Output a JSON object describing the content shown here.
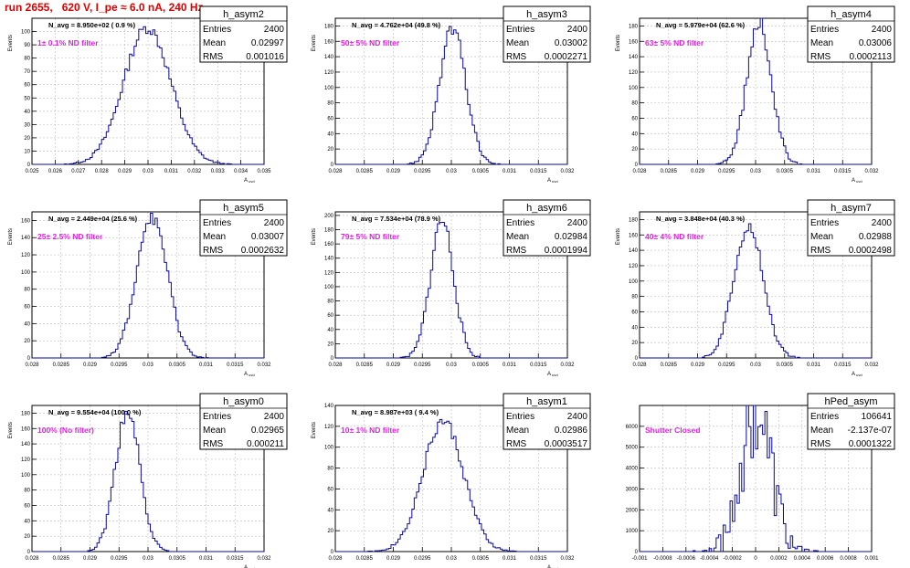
{
  "page": {
    "title": "run 2655,   620 V, I_pe ≈ 6.0 nA, 240 Hz"
  },
  "colors": {
    "title": "#e00000",
    "histogram": "#0a0a9a",
    "filter_label": "#e020e0",
    "axis": "#000000",
    "grid": "#bbbbbb"
  },
  "chart_data": [
    {
      "type": "histogram",
      "name": "h_asym2",
      "stats": {
        "Entries": "2400",
        "Mean": "0.02997",
        "RMS": "0.001016"
      },
      "navg": "N_avg = 8.950e+02 ( 0.9 %)",
      "filter_label": "1± 0.1% ND filter",
      "xlim": [
        0.025,
        0.035
      ],
      "ylim": [
        0,
        110
      ],
      "xticks": [
        "0.025",
        "0.026",
        "0.027",
        "0.028",
        "0.029",
        "0.03",
        "0.031",
        "0.032",
        "0.033",
        "0.034",
        "0.035"
      ],
      "yticks": [
        "0",
        "10",
        "20",
        "30",
        "40",
        "50",
        "60",
        "70",
        "80",
        "90",
        "100"
      ],
      "ylabel": "Events",
      "xlabel": "A_uvd",
      "mean": 0.02997,
      "sigma": 0.001016,
      "peak": 103
    },
    {
      "type": "histogram",
      "name": "h_asym3",
      "stats": {
        "Entries": "2400",
        "Mean": "0.03002",
        "RMS": "0.0002271"
      },
      "navg": "N_avg = 4.762e+04 (49.8 %)",
      "filter_label": "50± 5% ND filter",
      "xlim": [
        0.028,
        0.032
      ],
      "ylim": [
        0,
        190
      ],
      "xticks": [
        "0.028",
        "0.0285",
        "0.029",
        "0.0295",
        "0.03",
        "0.0305",
        "0.031",
        "0.0315",
        "0.032"
      ],
      "yticks": [
        "0",
        "20",
        "40",
        "60",
        "80",
        "100",
        "120",
        "140",
        "160",
        "180"
      ],
      "ylabel": "Events",
      "xlabel": "A_uvd",
      "mean": 0.03002,
      "sigma": 0.0002271,
      "peak": 175
    },
    {
      "type": "histogram",
      "name": "h_asym4",
      "stats": {
        "Entries": "2400",
        "Mean": "0.03006",
        "RMS": "0.0002113"
      },
      "navg": "N_avg = 5.979e+04 (62.6 %)",
      "filter_label": "63± 5% ND filter",
      "xlim": [
        0.028,
        0.032
      ],
      "ylim": [
        0,
        190
      ],
      "xticks": [
        "0.028",
        "0.0285",
        "0.029",
        "0.0295",
        "0.03",
        "0.0305",
        "0.031",
        "0.0315",
        "0.032"
      ],
      "yticks": [
        "0",
        "20",
        "40",
        "60",
        "80",
        "100",
        "120",
        "140",
        "160",
        "180"
      ],
      "ylabel": "Events",
      "xlabel": "A_uvd",
      "mean": 0.03006,
      "sigma": 0.0002113,
      "peak": 185
    },
    {
      "type": "histogram",
      "name": "h_asym5",
      "stats": {
        "Entries": "2400",
        "Mean": "0.03007",
        "RMS": "0.0002632"
      },
      "navg": "N_avg = 2.449e+04 (25.6 %)",
      "filter_label": "25± 2.5% ND filter",
      "xlim": [
        0.028,
        0.032
      ],
      "ylim": [
        0,
        170
      ],
      "xticks": [
        "0.028",
        "0.0285",
        "0.029",
        "0.0295",
        "0.03",
        "0.0305",
        "0.031",
        "0.0315",
        "0.032"
      ],
      "yticks": [
        "0",
        "20",
        "40",
        "60",
        "80",
        "100",
        "120",
        "140",
        "160"
      ],
      "ylabel": "Events",
      "xlabel": "A_uvd",
      "mean": 0.03007,
      "sigma": 0.0002632,
      "peak": 165
    },
    {
      "type": "histogram",
      "name": "h_asym6",
      "stats": {
        "Entries": "2400",
        "Mean": "0.02984",
        "RMS": "0.0001994"
      },
      "navg": "N_avg = 7.534e+04 (78.9 %)",
      "filter_label": "79± 5% ND filter",
      "xlim": [
        0.028,
        0.032
      ],
      "ylim": [
        0,
        205
      ],
      "xticks": [
        "0.028",
        "0.0285",
        "0.029",
        "0.0295",
        "0.03",
        "0.0305",
        "0.031",
        "0.0315",
        "0.032"
      ],
      "yticks": [
        "0",
        "20",
        "40",
        "60",
        "80",
        "100",
        "120",
        "140",
        "160",
        "180",
        "200"
      ],
      "ylabel": "Events",
      "xlabel": "A_uvd",
      "mean": 0.02984,
      "sigma": 0.0001994,
      "peak": 193
    },
    {
      "type": "histogram",
      "name": "h_asym7",
      "stats": {
        "Entries": "2400",
        "Mean": "0.02988",
        "RMS": "0.0002498"
      },
      "navg": "N_avg = 3.848e+04 (40.3 %)",
      "filter_label": "40± 4% ND filter",
      "xlim": [
        0.028,
        0.032
      ],
      "ylim": [
        0,
        190
      ],
      "xticks": [
        "0.028",
        "0.0285",
        "0.029",
        "0.0295",
        "0.03",
        "0.0305",
        "0.031",
        "0.0315",
        "0.032"
      ],
      "yticks": [
        "0",
        "20",
        "40",
        "60",
        "80",
        "100",
        "120",
        "140",
        "160",
        "180"
      ],
      "ylabel": "Events",
      "xlabel": "A_uvd",
      "mean": 0.02988,
      "sigma": 0.0002498,
      "peak": 175
    },
    {
      "type": "histogram",
      "name": "h_asym0",
      "stats": {
        "Entries": "2400",
        "Mean": "0.02965",
        "RMS": "0.000211"
      },
      "navg": "N_avg = 9.554e+04 (100.0 %)",
      "filter_label": "100% (No filter)",
      "xlim": [
        0.028,
        0.032
      ],
      "ylim": [
        0,
        190
      ],
      "xticks": [
        "0.028",
        "0.0285",
        "0.029",
        "0.0295",
        "0.03",
        "0.0305",
        "0.031",
        "0.0315",
        "0.032"
      ],
      "yticks": [
        "0",
        "20",
        "40",
        "60",
        "80",
        "100",
        "120",
        "140",
        "160",
        "180"
      ],
      "ylabel": "Events",
      "xlabel": "A_uvd",
      "mean": 0.02965,
      "sigma": 0.000211,
      "peak": 182
    },
    {
      "type": "histogram",
      "name": "h_asym1",
      "stats": {
        "Entries": "2400",
        "Mean": "0.02986",
        "RMS": "0.0003517"
      },
      "navg": "N_avg = 8.987e+03 ( 9.4 %)",
      "filter_label": "10± 1% ND filter",
      "xlim": [
        0.028,
        0.032
      ],
      "ylim": [
        0,
        140
      ],
      "xticks": [
        "0.028",
        "0.0285",
        "0.029",
        "0.0295",
        "0.03",
        "0.0305",
        "0.031",
        "0.0315",
        "0.032"
      ],
      "yticks": [
        "0",
        "20",
        "40",
        "60",
        "80",
        "100",
        "120",
        "140"
      ],
      "ylabel": "Events",
      "xlabel": "A_uvd",
      "mean": 0.02986,
      "sigma": 0.0003517,
      "peak": 125
    },
    {
      "type": "histogram",
      "name": "hPed_asym",
      "stats": {
        "Entries": "106641",
        "Mean": "-2.137e-07",
        "RMS": "0.0001322"
      },
      "navg": "",
      "filter_label": "Shutter Closed",
      "xlim": [
        -0.001,
        0.001
      ],
      "ylim": [
        0,
        7000
      ],
      "xticks": [
        "-0.001",
        "-0.0008",
        "-0.0006",
        "-0.0004",
        "-0.0002",
        "0",
        "0.0002",
        "0.0004",
        "0.0006",
        "0.0008",
        "0.001"
      ],
      "yticks": [
        "0",
        "1000",
        "2000",
        "3000",
        "4000",
        "5000",
        "6000"
      ],
      "ylabel": "",
      "xlabel": "",
      "mean": -2.137e-07,
      "sigma": 0.0001322,
      "peak": 6700
    }
  ]
}
